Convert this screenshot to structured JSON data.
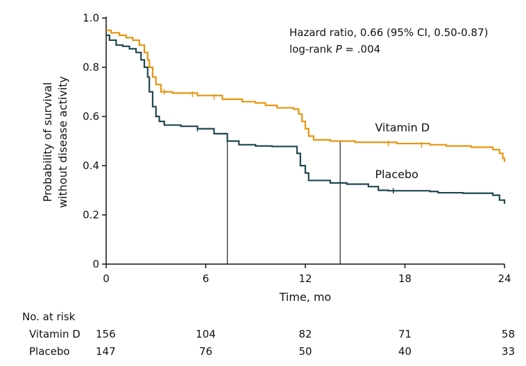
{
  "chart_data": {
    "type": "line",
    "subtype": "kaplan-meier",
    "xlabel": "Time, mo",
    "ylabel_line1": "Probability of survival",
    "ylabel_line2": "without disease activity",
    "xlim": [
      0,
      24
    ],
    "ylim": [
      0,
      1.0
    ],
    "xticks": [
      0,
      6,
      12,
      18,
      24
    ],
    "xtick_labels": [
      "0",
      "6",
      "12",
      "18",
      "24"
    ],
    "yticks": [
      0,
      0.2,
      0.4,
      0.6,
      0.8,
      1.0
    ],
    "ytick_labels": [
      "0",
      "0.2",
      "0.4",
      "0.6",
      "0.8",
      "1.0"
    ],
    "annotation": {
      "line1": "Hazard ratio, 0.66 (95% CI, 0.50-0.87)",
      "line2_prefix": "log-rank ",
      "line2_italic": "P",
      "line2_suffix": " = .004"
    },
    "median_lines": [
      {
        "x": 7.3,
        "y": 0.5
      },
      {
        "x": 14.1,
        "y": 0.5
      }
    ],
    "series": [
      {
        "name": "Vitamin D",
        "color": "#E8950F",
        "label_at": {
          "x": 16.2,
          "y": 0.54
        },
        "steps": [
          [
            0,
            0.95
          ],
          [
            0.3,
            0.94
          ],
          [
            0.8,
            0.93
          ],
          [
            1.2,
            0.92
          ],
          [
            1.6,
            0.91
          ],
          [
            2.0,
            0.89
          ],
          [
            2.3,
            0.86
          ],
          [
            2.5,
            0.83
          ],
          [
            2.6,
            0.8
          ],
          [
            2.8,
            0.76
          ],
          [
            3.0,
            0.73
          ],
          [
            3.3,
            0.7
          ],
          [
            4.0,
            0.695
          ],
          [
            5.5,
            0.685
          ],
          [
            7.0,
            0.67
          ],
          [
            8.2,
            0.66
          ],
          [
            9.0,
            0.655
          ],
          [
            9.6,
            0.645
          ],
          [
            10.3,
            0.635
          ],
          [
            11.3,
            0.63
          ],
          [
            11.6,
            0.61
          ],
          [
            11.8,
            0.58
          ],
          [
            12.0,
            0.55
          ],
          [
            12.2,
            0.52
          ],
          [
            12.5,
            0.505
          ],
          [
            13.5,
            0.5
          ],
          [
            15.0,
            0.495
          ],
          [
            17.5,
            0.49
          ],
          [
            19.5,
            0.485
          ],
          [
            20.5,
            0.48
          ],
          [
            22.0,
            0.475
          ],
          [
            23.3,
            0.465
          ],
          [
            23.7,
            0.45
          ],
          [
            23.9,
            0.43
          ],
          [
            24.0,
            0.415
          ]
        ],
        "censored": [
          [
            3.5,
            0.7
          ],
          [
            5.2,
            0.69
          ],
          [
            6.5,
            0.68
          ],
          [
            17.0,
            0.49
          ],
          [
            19.0,
            0.485
          ]
        ]
      },
      {
        "name": "Placebo",
        "color": "#1E4650",
        "label_at": {
          "x": 16.2,
          "y": 0.35
        },
        "steps": [
          [
            0,
            0.93
          ],
          [
            0.2,
            0.91
          ],
          [
            0.6,
            0.89
          ],
          [
            1.0,
            0.885
          ],
          [
            1.4,
            0.875
          ],
          [
            1.8,
            0.86
          ],
          [
            2.1,
            0.83
          ],
          [
            2.3,
            0.8
          ],
          [
            2.5,
            0.76
          ],
          [
            2.6,
            0.7
          ],
          [
            2.8,
            0.64
          ],
          [
            3.0,
            0.6
          ],
          [
            3.2,
            0.58
          ],
          [
            3.5,
            0.565
          ],
          [
            4.5,
            0.56
          ],
          [
            5.5,
            0.55
          ],
          [
            6.5,
            0.53
          ],
          [
            7.3,
            0.5
          ],
          [
            8.0,
            0.485
          ],
          [
            9.0,
            0.48
          ],
          [
            10.0,
            0.478
          ],
          [
            11.2,
            0.478
          ],
          [
            11.5,
            0.45
          ],
          [
            11.7,
            0.4
          ],
          [
            12.0,
            0.37
          ],
          [
            12.2,
            0.34
          ],
          [
            13.5,
            0.33
          ],
          [
            14.5,
            0.325
          ],
          [
            15.8,
            0.315
          ],
          [
            16.4,
            0.3
          ],
          [
            17.0,
            0.298
          ],
          [
            19.5,
            0.295
          ],
          [
            20.0,
            0.29
          ],
          [
            21.5,
            0.288
          ],
          [
            23.3,
            0.28
          ],
          [
            23.7,
            0.26
          ],
          [
            24.0,
            0.245
          ]
        ],
        "censored": [
          [
            5.5,
            0.55
          ],
          [
            17.3,
            0.298
          ]
        ]
      }
    ],
    "risk_table": {
      "header": "No. at risk",
      "times": [
        0,
        6,
        12,
        18,
        24
      ],
      "rows": [
        {
          "label": "Vitamin D",
          "values": [
            "156",
            "104",
            "82",
            "71",
            "58"
          ]
        },
        {
          "label": "Placebo",
          "values": [
            "147",
            "76",
            "50",
            "40",
            "33"
          ]
        }
      ]
    }
  }
}
